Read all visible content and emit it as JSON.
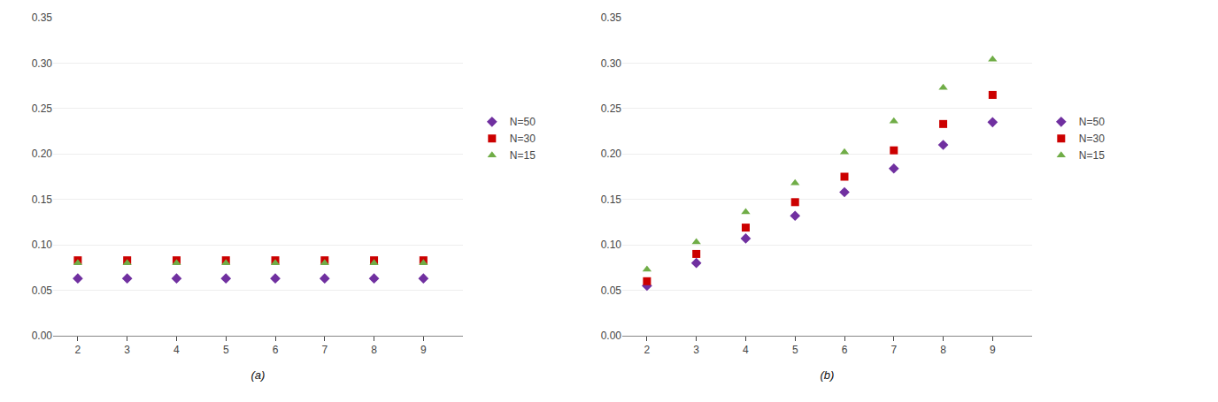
{
  "chart_data": [
    {
      "type": "scatter",
      "xlabel": "(a)",
      "x": [
        2,
        3,
        4,
        5,
        6,
        7,
        8,
        9
      ],
      "series": [
        {
          "name": "N=50",
          "color": "#7030A0",
          "marker": "diamond",
          "values": [
            0.063,
            0.063,
            0.063,
            0.063,
            0.063,
            0.063,
            0.063,
            0.063
          ]
        },
        {
          "name": "N=30",
          "color": "#CC0000",
          "marker": "square",
          "values": [
            0.083,
            0.083,
            0.083,
            0.083,
            0.083,
            0.083,
            0.083,
            0.083
          ]
        },
        {
          "name": "N=15",
          "color": "#70AD47",
          "marker": "triangle-up",
          "values": [
            0.08,
            0.08,
            0.08,
            0.08,
            0.08,
            0.08,
            0.08,
            0.08
          ]
        }
      ],
      "xlim": [
        1.5,
        9.8
      ],
      "xticks": [
        2,
        3,
        4,
        5,
        6,
        7,
        8,
        9
      ],
      "ylim": [
        0.0,
        0.35
      ],
      "yticks": [
        {
          "value": 0.0,
          "label": "0.00"
        },
        0.05,
        {
          "value": 0.1,
          "label": "0.10"
        },
        0.15,
        {
          "value": 0.2,
          "label": "0.20"
        },
        0.25,
        {
          "value": 0.3,
          "label": "0.30"
        },
        0.35
      ],
      "grid": "y",
      "legend": "right"
    },
    {
      "type": "scatter",
      "xlabel": "(b)",
      "x": [
        2,
        3,
        4,
        5,
        6,
        7,
        8,
        9
      ],
      "series": [
        {
          "name": "N=50",
          "color": "#7030A0",
          "marker": "diamond",
          "values": [
            0.055,
            0.08,
            0.107,
            0.132,
            0.158,
            0.184,
            0.21,
            0.235
          ]
        },
        {
          "name": "N=30",
          "color": "#CC0000",
          "marker": "square",
          "values": [
            0.06,
            0.09,
            0.119,
            0.147,
            0.175,
            0.204,
            0.233,
            0.265
          ]
        },
        {
          "name": "N=15",
          "color": "#70AD47",
          "marker": "triangle-up",
          "values": [
            0.073,
            0.103,
            0.136,
            0.168,
            0.202,
            0.236,
            0.273,
            0.304
          ]
        }
      ],
      "xlim": [
        1.5,
        9.8
      ],
      "xticks": [
        2,
        3,
        4,
        5,
        6,
        7,
        8,
        9
      ],
      "ylim": [
        0.0,
        0.35
      ],
      "yticks": [
        {
          "value": 0.0,
          "label": "0.00"
        },
        0.05,
        {
          "value": 0.1,
          "label": "0.10"
        },
        0.15,
        {
          "value": 0.2,
          "label": "0.20"
        },
        0.25,
        {
          "value": 0.3,
          "label": "0.30"
        },
        0.35
      ],
      "grid": "y",
      "legend": "right"
    }
  ]
}
